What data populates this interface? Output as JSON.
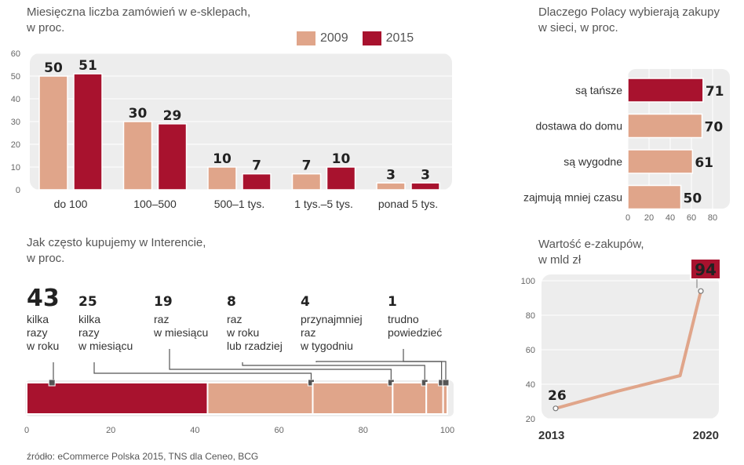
{
  "colors": {
    "c2009": "#e0a58a",
    "c2015": "#a8122e",
    "panel": "#ededed",
    "line": "#e0a58a"
  },
  "source": "źródło: eCommerce Polska 2015, TNS dla Ceneo, BCG",
  "chart_data": [
    {
      "type": "bar",
      "title_line1": "Miesięczna liczba zamówień w e-sklepach,",
      "title_line2": "w proc.",
      "categories": [
        "do 100",
        "100–500",
        "500–1 tys.",
        "1 tys.–5 tys.",
        "ponad 5 tys."
      ],
      "series": [
        {
          "name": "2009",
          "values": [
            50,
            30,
            10,
            7,
            3
          ]
        },
        {
          "name": "2015",
          "values": [
            51,
            29,
            7,
            10,
            3
          ]
        }
      ],
      "ylim": [
        0,
        60
      ],
      "yticks": [
        "0",
        "10",
        "20",
        "30",
        "40",
        "50",
        "60"
      ]
    },
    {
      "type": "bar",
      "orientation": "horizontal",
      "title_line1": "Dlaczego Polacy wybierają zakupy",
      "title_line2": "w sieci, w proc.",
      "categories": [
        "są tańsze",
        "dostawa do domu",
        "są wygodne",
        "zajmują mniej czasu"
      ],
      "values": [
        71,
        70,
        61,
        50
      ],
      "xlim": [
        0,
        80
      ],
      "xticks": [
        "0",
        "20",
        "40",
        "60",
        "80"
      ]
    },
    {
      "type": "bar",
      "orientation": "stacked-horizontal",
      "title_line1": "Jak często kupujemy w Interencie,",
      "title_line2": "w proc.",
      "segments": [
        {
          "value": 43,
          "label": [
            "kilka",
            "razy",
            "w roku"
          ]
        },
        {
          "value": 25,
          "label": [
            "kilka",
            "razy",
            "w miesiącu"
          ]
        },
        {
          "value": 19,
          "label": [
            "raz",
            "w miesiącu"
          ]
        },
        {
          "value": 8,
          "label": [
            "raz",
            "w roku",
            "lub rzadziej"
          ]
        },
        {
          "value": 4,
          "label": [
            "przynajmniej",
            "raz",
            "w tygodniu"
          ]
        },
        {
          "value": 1,
          "label": [
            "trudno",
            "powiedzieć"
          ]
        }
      ],
      "xlim": [
        0,
        100
      ],
      "xticks": [
        "0",
        "20",
        "40",
        "60",
        "80",
        "100"
      ]
    },
    {
      "type": "line",
      "title_line1": "Wartość e-zakupów,",
      "title_line2": "w mld zł",
      "x": [
        2013,
        2016,
        2019,
        2020
      ],
      "y": [
        26,
        36,
        45,
        94
      ],
      "xlabels": [
        "2013",
        "2020"
      ],
      "first_label": "26",
      "last_label": "94",
      "ylim": [
        20,
        100
      ],
      "yticks": [
        "20",
        "40",
        "60",
        "80",
        "100"
      ]
    }
  ]
}
